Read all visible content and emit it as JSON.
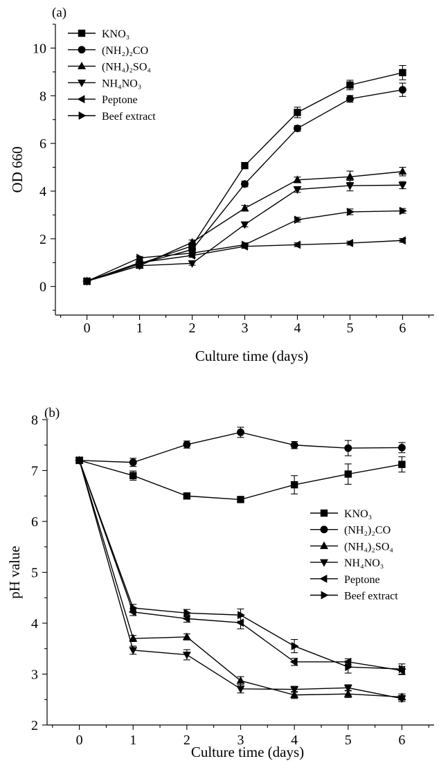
{
  "chart_data": [
    {
      "type": "line",
      "panel_label": "(a)",
      "xlabel": "Culture time (days)",
      "ylabel": "OD 660",
      "xlim": [
        -0.6,
        6.6
      ],
      "ylim": [
        -1.2,
        11.0
      ],
      "x": [
        0,
        1,
        2,
        3,
        4,
        5,
        6
      ],
      "xticks": [
        0,
        1,
        2,
        3,
        4,
        5,
        6
      ],
      "xtick_labels": [
        "0",
        "1",
        "2",
        "3",
        "4",
        "5",
        "6"
      ],
      "yticks": [
        0,
        2,
        4,
        6,
        8,
        10
      ],
      "ytick_labels": [
        "0",
        "2",
        "4",
        "6",
        "8",
        "10"
      ],
      "legend_position": "top-left",
      "series": [
        {
          "name": "KNO₃",
          "marker": "square",
          "values": [
            0.22,
            0.95,
            1.7,
            5.07,
            7.3,
            8.45,
            8.97
          ],
          "errors": [
            0.03,
            0.08,
            0.1,
            0.12,
            0.22,
            0.2,
            0.3
          ]
        },
        {
          "name": "(NH₂)₂CO",
          "marker": "circle",
          "values": [
            0.22,
            0.95,
            1.55,
            4.3,
            6.63,
            7.87,
            8.25
          ],
          "errors": [
            0.03,
            0.08,
            0.1,
            0.12,
            0.12,
            0.14,
            0.28
          ]
        },
        {
          "name": "(NH₄)₂SO₄",
          "marker": "triangle-up",
          "values": [
            0.22,
            0.87,
            1.85,
            3.28,
            4.47,
            4.6,
            4.82
          ],
          "errors": [
            0.03,
            0.08,
            0.1,
            0.12,
            0.12,
            0.24,
            0.18
          ]
        },
        {
          "name": "NH₄NO₃",
          "marker": "triangle-down",
          "values": [
            0.22,
            0.87,
            0.97,
            2.6,
            4.07,
            4.23,
            4.25
          ],
          "errors": [
            0.03,
            0.06,
            0.08,
            0.1,
            0.12,
            0.22,
            0.15
          ]
        },
        {
          "name": "Peptone",
          "marker": "triangle-left",
          "values": [
            0.22,
            1.0,
            1.3,
            1.68,
            1.75,
            1.82,
            1.93
          ],
          "errors": [
            0.03,
            0.06,
            0.08,
            0.08,
            0.08,
            0.08,
            0.08
          ]
        },
        {
          "name": "Beef extract",
          "marker": "triangle-right",
          "values": [
            0.22,
            1.2,
            1.4,
            1.75,
            2.8,
            3.13,
            3.17
          ],
          "errors": [
            0.03,
            0.06,
            0.08,
            0.08,
            0.1,
            0.12,
            0.1
          ]
        }
      ]
    },
    {
      "type": "line",
      "panel_label": "(b)",
      "xlabel": "Culture time (days)",
      "ylabel": "pH value",
      "xlim": [
        -0.6,
        6.6
      ],
      "ylim": [
        2.0,
        8.0
      ],
      "x": [
        0,
        1,
        2,
        3,
        4,
        5,
        6
      ],
      "xticks": [
        0,
        1,
        2,
        3,
        4,
        5,
        6
      ],
      "xtick_labels": [
        "0",
        "1",
        "2",
        "3",
        "4",
        "5",
        "6"
      ],
      "yticks": [
        2,
        3,
        4,
        5,
        6,
        7,
        8
      ],
      "ytick_labels": [
        "2",
        "3",
        "4",
        "5",
        "6",
        "7",
        "8"
      ],
      "legend_position": "right",
      "series": [
        {
          "name": "KNO₃",
          "marker": "square",
          "values": [
            7.2,
            6.9,
            6.5,
            6.43,
            6.72,
            6.93,
            7.12
          ],
          "errors": [
            0.04,
            0.09,
            0.05,
            0.05,
            0.18,
            0.2,
            0.15
          ]
        },
        {
          "name": "(NH₂)₂CO",
          "marker": "circle",
          "values": [
            7.2,
            7.16,
            7.51,
            7.75,
            7.5,
            7.44,
            7.45
          ],
          "errors": [
            0.04,
            0.08,
            0.07,
            0.1,
            0.07,
            0.15,
            0.1
          ]
        },
        {
          "name": "(NH₄)₂SO₄",
          "marker": "triangle-up",
          "values": [
            7.2,
            3.7,
            3.73,
            2.87,
            2.59,
            2.61,
            2.55
          ],
          "errors": [
            0.04,
            0.06,
            0.06,
            0.08,
            0.07,
            0.07,
            0.06
          ]
        },
        {
          "name": "NH₄NO₃",
          "marker": "triangle-down",
          "values": [
            7.2,
            3.47,
            3.38,
            2.71,
            2.7,
            2.73,
            2.52
          ],
          "errors": [
            0.04,
            0.08,
            0.1,
            0.08,
            0.06,
            0.06,
            0.06
          ]
        },
        {
          "name": "Peptone",
          "marker": "triangle-left",
          "values": [
            7.2,
            4.22,
            4.09,
            4.01,
            3.24,
            3.24,
            3.07
          ],
          "errors": [
            0.04,
            0.07,
            0.07,
            0.12,
            0.07,
            0.06,
            0.08
          ]
        },
        {
          "name": "Beef extract",
          "marker": "triangle-right",
          "values": [
            7.2,
            4.3,
            4.2,
            4.16,
            3.55,
            3.14,
            3.1
          ],
          "errors": [
            0.04,
            0.07,
            0.07,
            0.12,
            0.13,
            0.12,
            0.1
          ]
        }
      ]
    }
  ]
}
